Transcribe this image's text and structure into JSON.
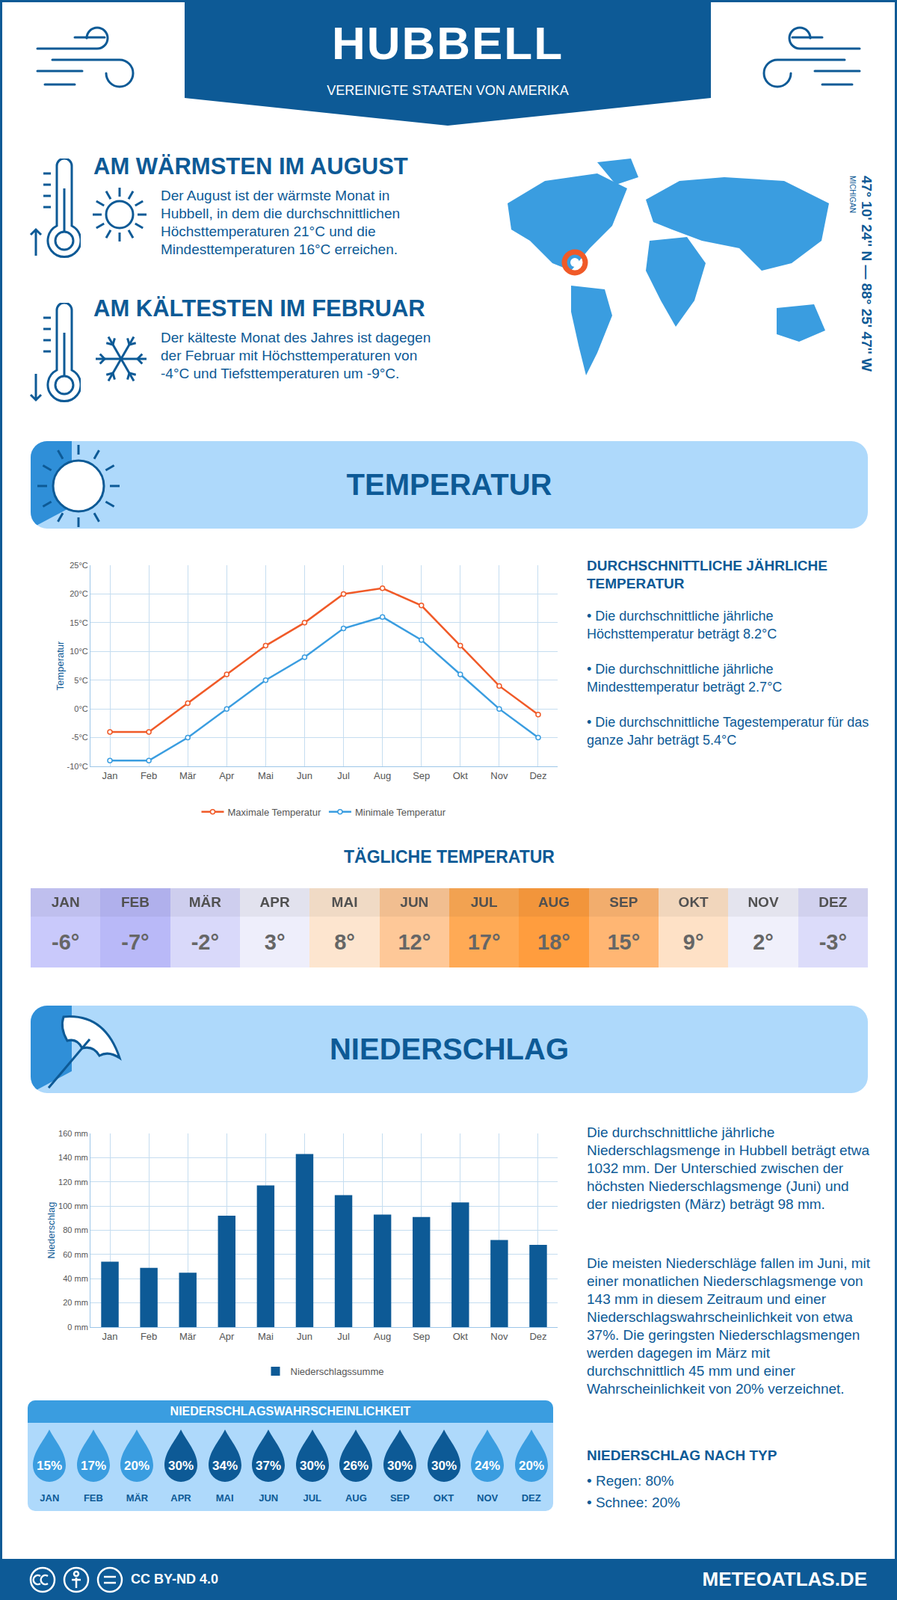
{
  "header": {
    "title": "HUBBELL",
    "subtitle": "VEREINIGTE STAATEN VON AMERIKA"
  },
  "location": {
    "coordinates": "47° 10' 24'' N — 88° 25' 47'' W",
    "region": "MICHIGAN"
  },
  "highlights": [
    {
      "title": "AM WÄRMSTEN IM AUGUST",
      "text": "Der August ist der wärmste Monat in Hubbell, in dem die durchschnittlichen Höchsttemperaturen 21°C und die Mindesttemperaturen 16°C erreichen."
    },
    {
      "title": "AM KÄLTESTEN IM FEBRUAR",
      "text": "Der kälteste Monat des Jahres ist dagegen der Februar mit Höchsttemperaturen von -4°C und Tiefsttemperaturen um -9°C."
    }
  ],
  "sections": {
    "temperature": "TEMPERATUR",
    "precipitation": "NIEDERSCHLAG"
  },
  "chart_data": [
    {
      "type": "line",
      "y_label": "Temperatur",
      "categories": [
        "Jan",
        "Feb",
        "Mär",
        "Apr",
        "Mai",
        "Jun",
        "Jul",
        "Aug",
        "Sep",
        "Okt",
        "Nov",
        "Dez"
      ],
      "series": [
        {
          "name": "Maximale Temperatur",
          "color": "#f05a28",
          "marker": "circle",
          "values": [
            -4,
            -4,
            1,
            6,
            11,
            15,
            20,
            21,
            18,
            11,
            4,
            -1
          ]
        },
        {
          "name": "Minimale Temperatur",
          "color": "#3a9de0",
          "marker": "circle",
          "values": [
            -9,
            -9,
            -5,
            0,
            5,
            9,
            14,
            16,
            12,
            6,
            0,
            -5
          ]
        }
      ],
      "ylim": [
        -10,
        25
      ],
      "yticks": [
        {
          "value": -10,
          "label": "-10°C"
        },
        {
          "value": -5,
          "label": "-5°C"
        },
        {
          "value": 0,
          "label": "0°C"
        },
        {
          "value": 5,
          "label": "5°C"
        },
        {
          "value": 10,
          "label": "10°C"
        },
        {
          "value": 15,
          "label": "15°C"
        },
        {
          "value": 20,
          "label": "20°C"
        },
        {
          "value": 25,
          "label": "25°C"
        }
      ],
      "grid": true,
      "legend": "bottom"
    },
    {
      "type": "bar",
      "y_label": "Niederschlag",
      "categories": [
        "Jan",
        "Feb",
        "Mär",
        "Apr",
        "Mai",
        "Jun",
        "Jul",
        "Aug",
        "Sep",
        "Okt",
        "Nov",
        "Dez"
      ],
      "series": [
        {
          "name": "Niederschlagssumme",
          "color": "#0d5a96",
          "values": [
            54,
            49,
            45,
            92,
            117,
            143,
            109,
            93,
            91,
            103,
            72,
            68
          ]
        }
      ],
      "ylim": [
        0,
        160
      ],
      "yticks": [
        {
          "value": 0,
          "label": "0 mm"
        },
        {
          "value": 20,
          "label": "20 mm"
        },
        {
          "value": 40,
          "label": "40 mm"
        },
        {
          "value": 60,
          "label": "60 mm"
        },
        {
          "value": 80,
          "label": "80 mm"
        },
        {
          "value": 100,
          "label": "100 mm"
        },
        {
          "value": 120,
          "label": "120 mm"
        },
        {
          "value": 140,
          "label": "140 mm"
        },
        {
          "value": 160,
          "label": "160 mm"
        }
      ],
      "grid": true,
      "legend": "bottom"
    }
  ],
  "annual_temperature": {
    "title": "DURCHSCHNITTLICHE JÄHRLICHE TEMPERATUR",
    "items": [
      "• Die durchschnittliche jährliche Höchsttemperatur beträgt 8.2°C",
      "• Die durchschnittliche jährliche Mindesttemperatur beträgt 2.7°C",
      "• Die durchschnittliche Tagestemperatur für das ganze Jahr beträgt 5.4°C"
    ]
  },
  "daily_temperature": {
    "title": "TÄGLICHE TEMPERATUR",
    "categories": [
      "JAN",
      "FEB",
      "MÄR",
      "APR",
      "MAI",
      "JUN",
      "JUL",
      "AUG",
      "SEP",
      "OKT",
      "NOV",
      "DEZ"
    ],
    "values": [
      -6,
      -7,
      -2,
      3,
      8,
      12,
      17,
      18,
      15,
      9,
      2,
      -3
    ],
    "value_labels": [
      "-6°",
      "-7°",
      "-2°",
      "3°",
      "8°",
      "12°",
      "17°",
      "18°",
      "15°",
      "9°",
      "2°",
      "-3°"
    ],
    "colors": [
      "#c9c9fb",
      "#b9b9f8",
      "#d9d9fa",
      "#eeeefb",
      "#fde5cf",
      "#fec898",
      "#ffaa55",
      "#ff9d3e",
      "#ffb673",
      "#fee1c6",
      "#f0f0fb",
      "#dcdcfa"
    ]
  },
  "precipitation_text": {
    "paragraphs": [
      "Die durchschnittliche jährliche Niederschlagsmenge in Hubbell beträgt etwa 1032 mm. Der Unterschied zwischen der höchsten Niederschlagsmenge (Juni) und der niedrigsten (März) beträgt 98 mm.",
      "Die meisten Niederschläge fallen im Juni, mit einer monatlichen Niederschlagsmenge von 143 mm in diesem Zeitraum und einer Niederschlagswahrscheinlichkeit von etwa 37%. Die geringsten Niederschlagsmengen werden dagegen im März mit durchschnittlich 45 mm und einer Wahrscheinlichkeit von 20% verzeichnet."
    ]
  },
  "precipitation_probability": {
    "title": "NIEDERSCHLAGSWAHRSCHEINLICHKEIT",
    "categories": [
      "JAN",
      "FEB",
      "MÄR",
      "APR",
      "MAI",
      "JUN",
      "JUL",
      "AUG",
      "SEP",
      "OKT",
      "NOV",
      "DEZ"
    ],
    "values": [
      15,
      17,
      20,
      30,
      34,
      37,
      30,
      26,
      30,
      30,
      24,
      20
    ],
    "value_labels": [
      "15%",
      "17%",
      "20%",
      "30%",
      "34%",
      "37%",
      "30%",
      "26%",
      "30%",
      "30%",
      "24%",
      "20%"
    ],
    "colors": [
      "#3a9de0",
      "#3a9de0",
      "#3a9de0",
      "#0d5a96",
      "#0d5a96",
      "#0d5a96",
      "#0d5a96",
      "#0d5a96",
      "#0d5a96",
      "#0d5a96",
      "#3a9de0",
      "#3a9de0"
    ]
  },
  "precipitation_type": {
    "title": "NIEDERSCHLAG NACH TYP",
    "items": [
      "• Regen: 80%",
      "• Schnee: 20%"
    ]
  },
  "footer": {
    "license": "CC BY-ND 4.0",
    "site": "METEOATLAS.DE"
  }
}
